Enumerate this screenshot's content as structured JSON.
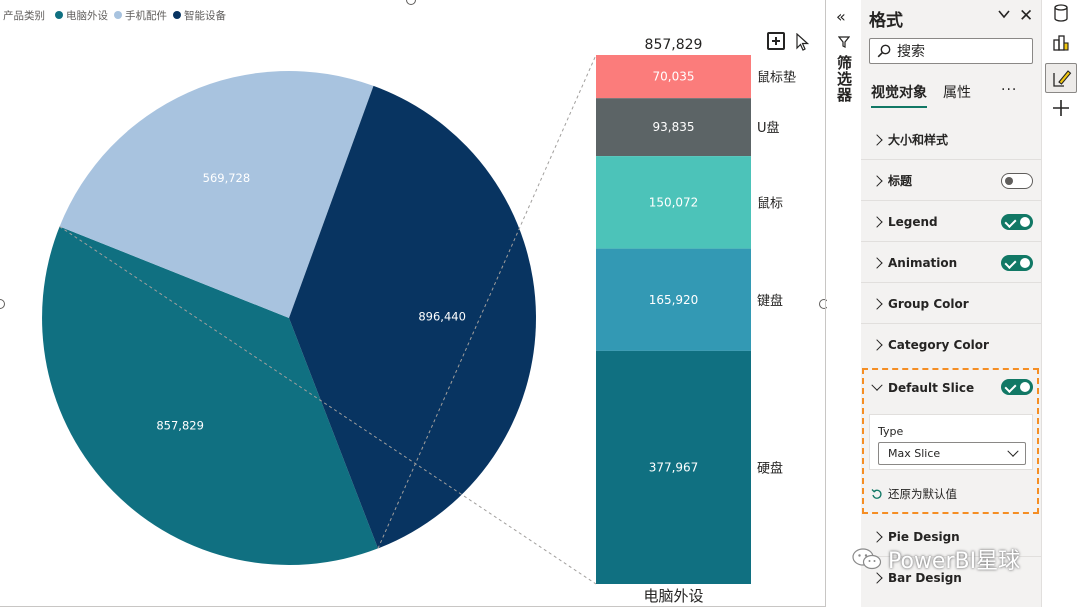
{
  "legend": {
    "title": "产品类别",
    "items": [
      {
        "label": "电脑外设",
        "color": "#107081"
      },
      {
        "label": "手机配件",
        "color": "#a8c3df"
      },
      {
        "label": "智能设备",
        "color": "#083461"
      }
    ]
  },
  "chart_data": {
    "type": "pie",
    "pie": {
      "slices": [
        {
          "category": "电脑外设",
          "value": 857829,
          "label": "857,829",
          "color": "#107081"
        },
        {
          "category": "手机配件",
          "value": 569728,
          "label": "569,728",
          "color": "#a8c3df"
        },
        {
          "category": "智能设备",
          "value": 896440,
          "label": "896,440",
          "color": "#083461"
        }
      ]
    },
    "breakdown": {
      "type": "stacked-bar",
      "category": "电脑外设",
      "total_label": "857,829",
      "segments": [
        {
          "name": "鼠标垫",
          "value": 70035,
          "label": "70,035",
          "color": "#fb7c7b"
        },
        {
          "name": "U盘",
          "value": 93835,
          "label": "93,835",
          "color": "#5c6466"
        },
        {
          "name": "鼠标",
          "value": 150072,
          "label": "150,072",
          "color": "#4cc3b9"
        },
        {
          "name": "键盘",
          "value": 165920,
          "label": "165,920",
          "color": "#3399b4"
        },
        {
          "name": "硬盘",
          "value": 377967,
          "label": "377,967",
          "color": "#107081"
        }
      ]
    }
  },
  "filter_pane": {
    "label": "筛选器"
  },
  "format_pane": {
    "title": "格式",
    "search_placeholder": "搜索",
    "tabs": [
      "视觉对象",
      "属性"
    ],
    "more": "···",
    "sections": [
      {
        "label": "大小和样式",
        "toggle": null
      },
      {
        "label": "标题",
        "toggle": "off"
      },
      {
        "label": "Legend",
        "toggle": "on"
      },
      {
        "label": "Animation",
        "toggle": "on"
      },
      {
        "label": "Group Color",
        "toggle": null
      },
      {
        "label": "Category Color",
        "toggle": null
      }
    ],
    "default_slice": {
      "label": "Default Slice",
      "toggle": "on",
      "type_label": "Type",
      "type_value": "Max Slice",
      "reset_label": "还原为默认值"
    },
    "after_sections": [
      {
        "label": "Pie Design"
      },
      {
        "label": "Bar Design"
      }
    ]
  },
  "watermark": "PowerBI星球",
  "colors": {
    "accent": "#117865",
    "highlight": "#f58e24"
  }
}
